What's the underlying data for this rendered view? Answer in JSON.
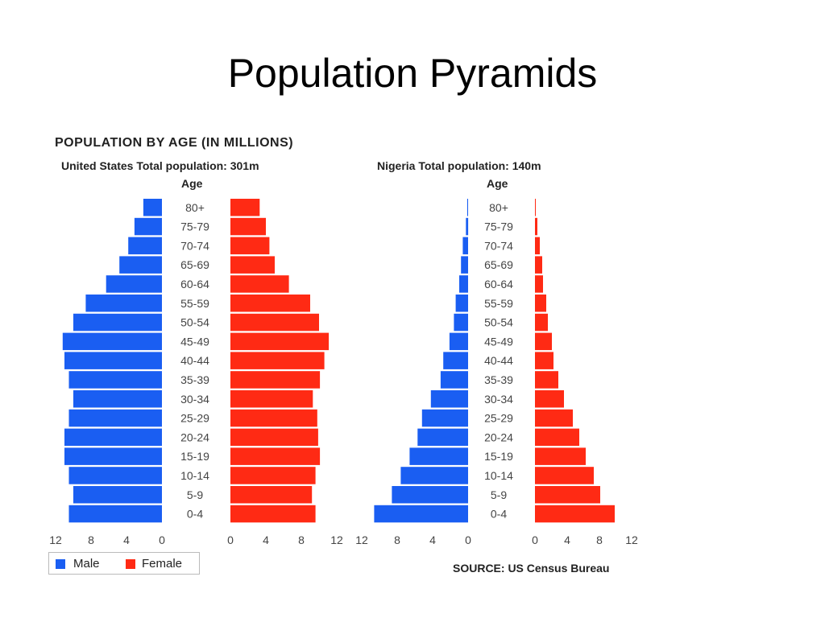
{
  "slide": {
    "title": "Population Pyramids"
  },
  "chart_data": {
    "type": "bar",
    "title": "POPULATION BY AGE (IN MILLIONS)",
    "source": "SOURCE: US Census Bureau",
    "age_label": "Age",
    "legend": {
      "male": "Male",
      "female": "Female",
      "placement": "bottom-left"
    },
    "colors": {
      "male": "#1a5ef2",
      "female": "#ff2a14"
    },
    "categories": [
      "80+",
      "75-79",
      "70-74",
      "65-69",
      "60-64",
      "55-59",
      "50-54",
      "45-49",
      "40-44",
      "35-39",
      "30-34",
      "25-29",
      "20-24",
      "15-19",
      "10-14",
      "5-9",
      "0-4"
    ],
    "xlim": [
      0,
      12
    ],
    "ticks": [
      0,
      4,
      8,
      12
    ],
    "panels": [
      {
        "subtitle": "United States Total population: 301m",
        "series": [
          {
            "name": "Male",
            "values": [
              2.1,
              3.1,
              3.8,
              4.8,
              6.3,
              8.6,
              10.0,
              11.2,
              11.0,
              10.5,
              10.0,
              10.5,
              11.0,
              11.0,
              10.5,
              10.0,
              10.5
            ]
          },
          {
            "name": "Female",
            "values": [
              3.3,
              4.0,
              4.4,
              5.0,
              6.6,
              9.0,
              10.0,
              11.1,
              10.6,
              10.1,
              9.3,
              9.8,
              9.9,
              10.1,
              9.6,
              9.2,
              9.6
            ]
          }
        ]
      },
      {
        "subtitle": "Nigeria Total population: 140m",
        "series": [
          {
            "name": "Male",
            "values": [
              0.1,
              0.25,
              0.6,
              0.8,
              1.0,
              1.4,
              1.6,
              2.1,
              2.8,
              3.1,
              4.2,
              5.2,
              5.7,
              6.6,
              7.6,
              8.6,
              10.6
            ]
          },
          {
            "name": "Female",
            "values": [
              0.1,
              0.3,
              0.6,
              0.9,
              1.0,
              1.4,
              1.6,
              2.1,
              2.3,
              2.9,
              3.6,
              4.7,
              5.5,
              6.3,
              7.3,
              8.1,
              9.9
            ]
          }
        ]
      }
    ]
  }
}
